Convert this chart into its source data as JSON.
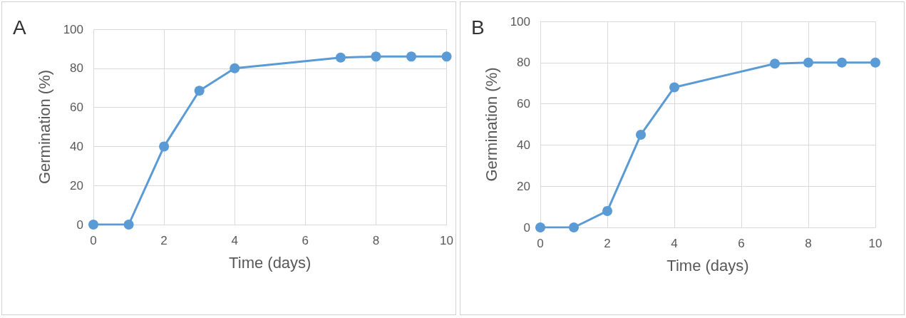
{
  "chart_data": [
    {
      "type": "line",
      "title": "A",
      "xlabel": "Time (days)",
      "ylabel": "Germination (%)",
      "x": [
        0,
        1,
        2,
        3,
        4,
        7,
        8,
        9,
        10
      ],
      "series": [
        {
          "color": "#5b9bd5",
          "values": [
            0,
            0,
            40,
            68.5,
            80,
            85.5,
            86,
            86,
            86
          ]
        }
      ],
      "xlim": [
        0,
        10
      ],
      "xticks": [
        0,
        2,
        4,
        6,
        8,
        10
      ],
      "ylim": [
        0,
        100
      ],
      "yticks": [
        0,
        20,
        40,
        60,
        80,
        100
      ],
      "grid": true,
      "marker": "circle",
      "line_style": "solid"
    },
    {
      "type": "line",
      "title": "B",
      "xlabel": "Time (days)",
      "ylabel": "Germination (%)",
      "x": [
        0,
        1,
        2,
        3,
        4,
        7,
        8,
        9,
        10
      ],
      "series": [
        {
          "color": "#5b9bd5",
          "values": [
            0,
            0,
            8,
            45,
            68,
            79.5,
            80,
            80,
            80
          ]
        }
      ],
      "xlim": [
        0,
        10
      ],
      "xticks": [
        0,
        2,
        4,
        6,
        8,
        10
      ],
      "ylim": [
        0,
        100
      ],
      "yticks": [
        0,
        20,
        40,
        60,
        80,
        100
      ],
      "grid": true,
      "marker": "circle",
      "line_style": "solid"
    }
  ]
}
